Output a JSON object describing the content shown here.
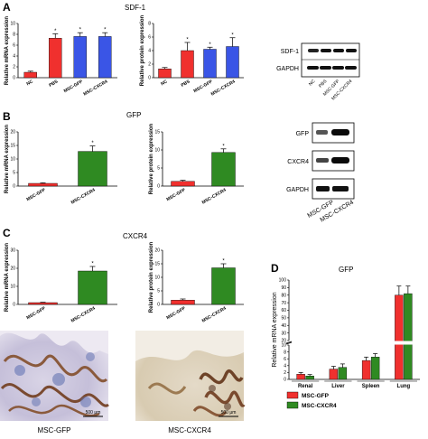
{
  "panel_labels": {
    "a": "A",
    "b": "B",
    "c": "C",
    "d": "D"
  },
  "section_titles": {
    "sdf1": "SDF-1",
    "gfp": "GFP",
    "cxcr4": "CXCR4",
    "d": "GFP"
  },
  "blots": {
    "a": {
      "bands": [
        "SDF-1",
        "GAPDH"
      ],
      "lanes": [
        "NC",
        "PBS",
        "MSC-GFP",
        "MSC-CXCR4"
      ]
    },
    "b": {
      "bands": [
        "GFP",
        "CXCR4",
        "GAPDH"
      ],
      "lanes": [
        "MSC-GFP",
        "MSC-CXCR4"
      ]
    }
  },
  "micrographs": {
    "left": {
      "caption": "MSC-GFP",
      "scale": "500 μm"
    },
    "right": {
      "caption": "MSC-CXCR4",
      "scale": "500 μm"
    }
  },
  "colors": {
    "red": "#f0302e",
    "blue": "#3a55e6",
    "green": "#2f8a22"
  },
  "chart_data": [
    {
      "id": "a-mrna",
      "type": "bar",
      "ylabel": "Relative mRNA expression",
      "categories": [
        "NC",
        "PBS",
        "MSC-GFP",
        "MSC-CXCR4"
      ],
      "values": [
        1.0,
        7.3,
        7.6,
        7.6
      ],
      "errors": [
        0.2,
        0.8,
        0.7,
        0.7
      ],
      "colors": [
        "#f0302e",
        "#f0302e",
        "#3a55e6",
        "#3a55e6"
      ],
      "ylim": [
        0,
        10
      ],
      "yticks": [
        0,
        2,
        4,
        6,
        8,
        10
      ],
      "sig": [
        "",
        "*",
        "*",
        "*"
      ]
    },
    {
      "id": "a-protein",
      "type": "bar",
      "ylabel": "Relative protein expression",
      "categories": [
        "NC",
        "PBS",
        "MSC-GFP",
        "MSC-CXCR4"
      ],
      "values": [
        1.3,
        4.0,
        4.2,
        4.6
      ],
      "errors": [
        0.2,
        1.2,
        0.3,
        1.3
      ],
      "colors": [
        "#f0302e",
        "#f0302e",
        "#3a55e6",
        "#3a55e6"
      ],
      "ylim": [
        0,
        8
      ],
      "yticks": [
        0,
        2,
        4,
        6,
        8
      ],
      "sig": [
        "",
        "*",
        "*",
        "*"
      ]
    },
    {
      "id": "b-mrna",
      "type": "bar",
      "ylabel": "Relative mRNA expression",
      "categories": [
        "MSC-GFP",
        "MSC-CXCR4"
      ],
      "values": [
        1.0,
        12.8
      ],
      "errors": [
        0.2,
        2.0
      ],
      "colors": [
        "#f0302e",
        "#2f8a22"
      ],
      "ylim": [
        0,
        20
      ],
      "yticks": [
        0,
        5,
        10,
        15,
        20
      ],
      "sig": [
        "",
        "*"
      ]
    },
    {
      "id": "b-protein",
      "type": "bar",
      "ylabel": "Relative protein expression",
      "categories": [
        "MSC-GFP",
        "MSC-CXCR4"
      ],
      "values": [
        1.3,
        9.3
      ],
      "errors": [
        0.3,
        1.0
      ],
      "colors": [
        "#f0302e",
        "#2f8a22"
      ],
      "ylim": [
        0,
        15
      ],
      "yticks": [
        0,
        5,
        10,
        15
      ],
      "sig": [
        "",
        "*"
      ]
    },
    {
      "id": "c-mrna",
      "type": "bar",
      "ylabel": "Relative mRNA expression",
      "categories": [
        "MSC-GFP",
        "MSC-CXCR4"
      ],
      "values": [
        1.0,
        18.5
      ],
      "errors": [
        0.2,
        2.5
      ],
      "colors": [
        "#f0302e",
        "#2f8a22"
      ],
      "ylim": [
        0,
        30
      ],
      "yticks": [
        0,
        10,
        20,
        30
      ],
      "sig": [
        "",
        "*"
      ]
    },
    {
      "id": "c-protein",
      "type": "bar",
      "ylabel": "Relative protein expression",
      "categories": [
        "MSC-GFP",
        "MSC-CXCR4"
      ],
      "values": [
        1.6,
        13.5
      ],
      "errors": [
        0.4,
        1.5
      ],
      "colors": [
        "#f0302e",
        "#2f8a22"
      ],
      "ylim": [
        0,
        20
      ],
      "yticks": [
        0,
        5,
        10,
        15,
        20
      ],
      "sig": [
        "",
        "*"
      ]
    },
    {
      "id": "d-mrna",
      "type": "bar",
      "ylabel": "Relative mRNA expression",
      "categories": [
        "Renal",
        "Liver",
        "Spleen",
        "Lung"
      ],
      "series": [
        {
          "name": "MSC-GFP",
          "color": "#f0302e",
          "values": [
            1.5,
            3.0,
            5.5,
            80
          ],
          "errors": [
            0.5,
            0.8,
            1.0,
            12
          ]
        },
        {
          "name": "MSC-CXCR4",
          "color": "#2f8a22",
          "values": [
            1.0,
            3.5,
            6.5,
            82
          ],
          "errors": [
            0.4,
            1.0,
            1.0,
            10
          ]
        }
      ],
      "yticks": [
        0,
        2,
        4,
        6,
        8,
        10,
        20,
        30,
        40,
        50,
        60,
        70,
        80,
        90,
        100
      ],
      "axis_break": [
        10,
        20
      ],
      "legend": "bottom"
    }
  ]
}
